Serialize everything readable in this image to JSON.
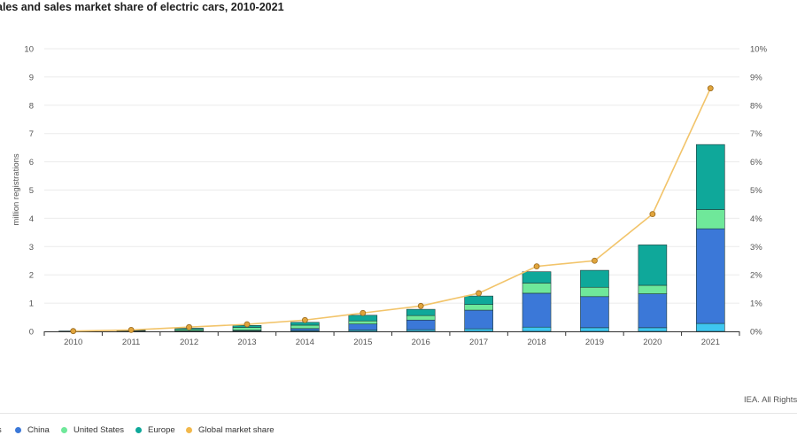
{
  "title": "ales and sales market share of electric cars, 2010-2021",
  "credit": "IEA. All Rights R",
  "legend": {
    "cut_item": "s",
    "items": [
      {
        "label": "China",
        "color": "#3b78d8"
      },
      {
        "label": "United States",
        "color": "#6fe89a"
      },
      {
        "label": "Europe",
        "color": "#0fa89a"
      },
      {
        "label": "Global market share",
        "color": "#f2b84b"
      }
    ]
  },
  "colors": {
    "other": "#3ec7f0",
    "china": "#3b78d8",
    "us": "#6fe89a",
    "europe": "#0fa89a",
    "share_line": "#f2c46a",
    "share_marker_fill": "#e0a43c",
    "share_marker_stroke": "#9a6a1e",
    "grid": "#ebebeb",
    "bar_outline": "#1f3a3a"
  },
  "chart_data": {
    "type": "bar",
    "stacked": true,
    "categories": [
      "2010",
      "2011",
      "2012",
      "2013",
      "2014",
      "2015",
      "2016",
      "2017",
      "2018",
      "2019",
      "2020",
      "2021"
    ],
    "ylabel": "million registrations",
    "ylim": [
      0,
      10
    ],
    "yticks": [
      "0",
      "1",
      "2",
      "3",
      "4",
      "5",
      "6",
      "7",
      "8",
      "9",
      "10"
    ],
    "y2lim": [
      0,
      10
    ],
    "y2ticks": [
      "0%",
      "1%",
      "2%",
      "3%",
      "4%",
      "5%",
      "6%",
      "7%",
      "8%",
      "9%",
      "10%"
    ],
    "grid": true,
    "legend_position": "bottom",
    "series": [
      {
        "key": "other",
        "values": [
          0.003,
          0.005,
          0.01,
          0.02,
          0.03,
          0.05,
          0.06,
          0.09,
          0.15,
          0.13,
          0.13,
          0.28
        ]
      },
      {
        "key": "china",
        "name": "China",
        "values": [
          0.002,
          0.005,
          0.01,
          0.02,
          0.07,
          0.21,
          0.34,
          0.66,
          1.2,
          1.1,
          1.2,
          3.35
        ]
      },
      {
        "key": "us",
        "name": "United States",
        "values": [
          0.002,
          0.018,
          0.05,
          0.1,
          0.12,
          0.11,
          0.16,
          0.2,
          0.36,
          0.33,
          0.3,
          0.68
        ]
      },
      {
        "key": "europe",
        "name": "Europe",
        "values": [
          0.005,
          0.02,
          0.04,
          0.07,
          0.1,
          0.2,
          0.22,
          0.3,
          0.4,
          0.6,
          1.43,
          2.3
        ]
      },
      {
        "key": "share",
        "name": "Global market share",
        "type": "line",
        "axis": "right",
        "values": [
          0.01,
          0.05,
          0.15,
          0.25,
          0.4,
          0.65,
          0.9,
          1.35,
          2.3,
          2.5,
          4.15,
          8.6
        ]
      }
    ]
  }
}
